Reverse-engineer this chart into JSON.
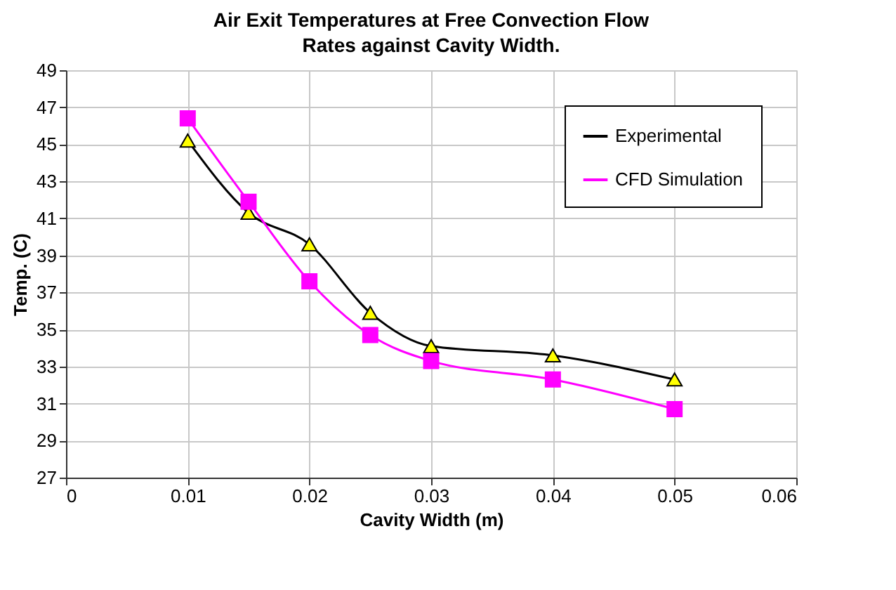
{
  "chart_data": {
    "type": "line",
    "title": "Air Exit Temperatures at Free Convection Flow Rates against Cavity Width.",
    "xlabel": "Cavity Width (m)",
    "ylabel": "Temp. (C)",
    "x": [
      0.01,
      0.015,
      0.02,
      0.025,
      0.03,
      0.04,
      0.05
    ],
    "series": [
      {
        "name": "Experimental",
        "color": "#000000",
        "marker": "triangle",
        "values": [
          45.2,
          41.3,
          39.6,
          35.9,
          34.1,
          33.6,
          32.3
        ]
      },
      {
        "name": "CFD Simulation",
        "color": "#ff00ff",
        "marker": "square",
        "values": [
          46.4,
          41.9,
          37.6,
          34.7,
          33.3,
          32.3,
          30.7
        ]
      }
    ],
    "xlim": [
      0,
      0.06
    ],
    "xticks": [
      0,
      0.01,
      0.02,
      0.03,
      0.04,
      0.05,
      0.06
    ],
    "ylim": [
      27,
      49
    ],
    "yticks": [
      27,
      29,
      31,
      33,
      35,
      37,
      39,
      41,
      43,
      45,
      47,
      49
    ],
    "grid": true,
    "legend": "top right",
    "line_style": "solid"
  }
}
